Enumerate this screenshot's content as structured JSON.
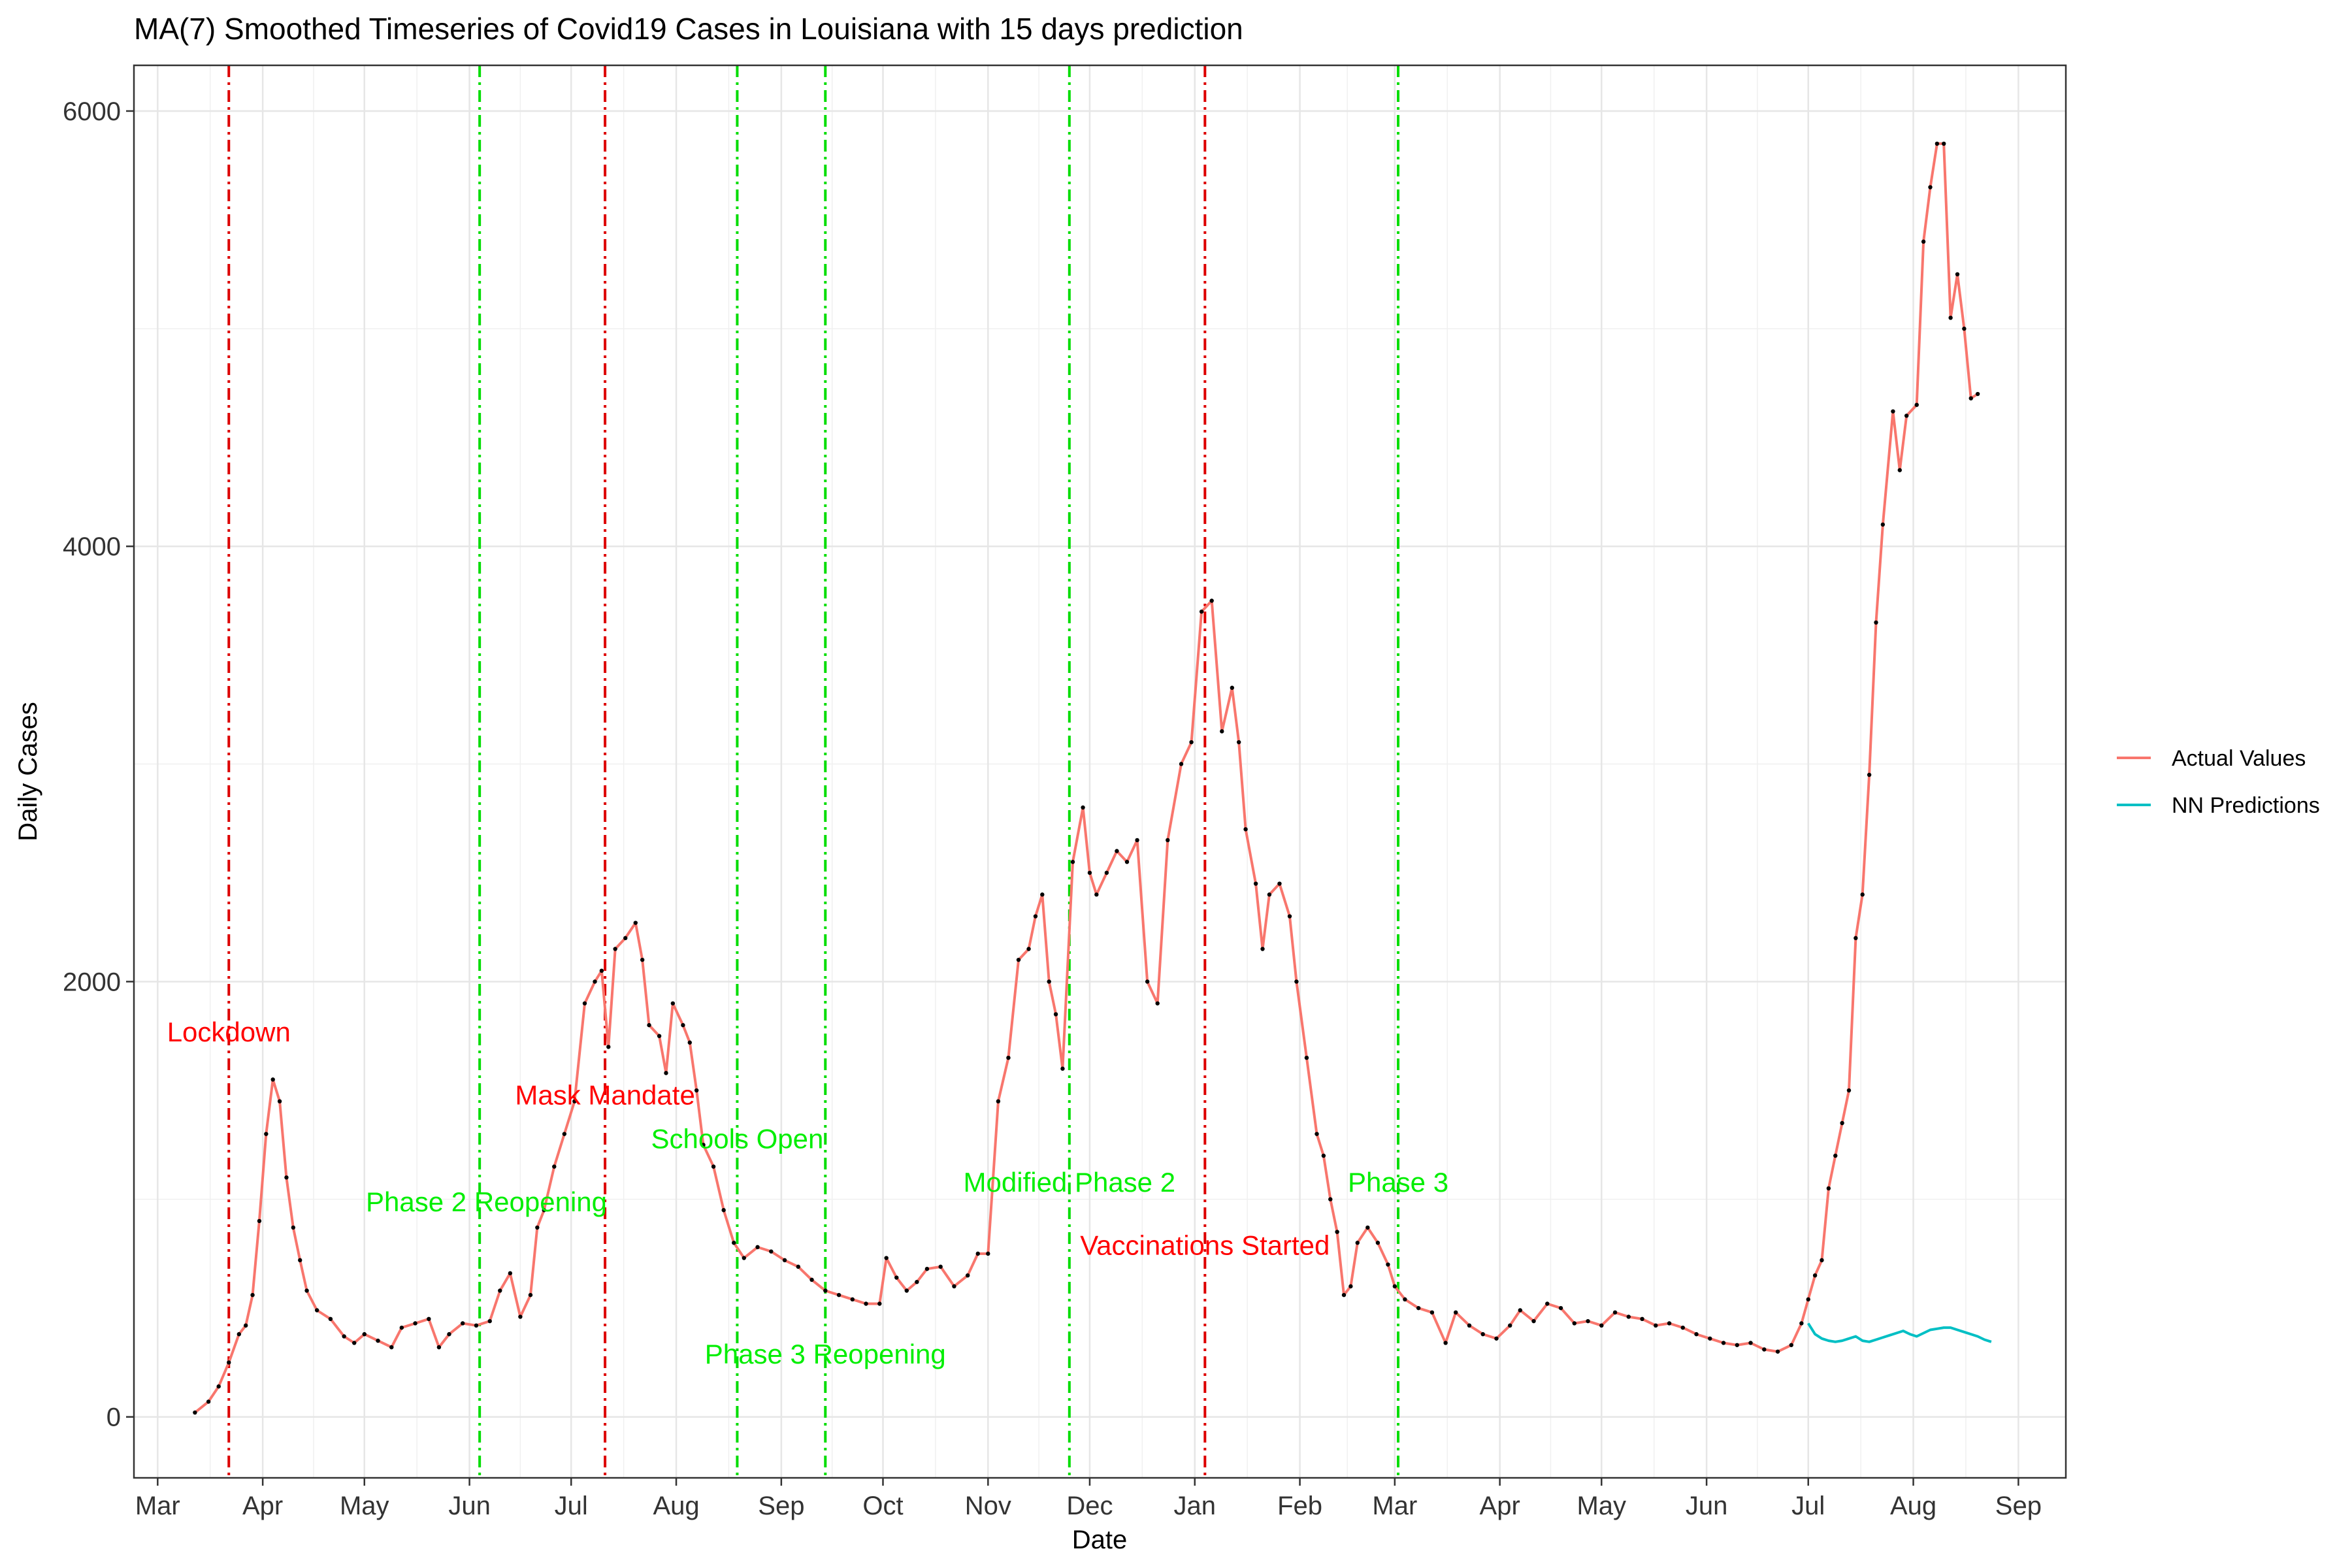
{
  "chart_data": {
    "type": "line",
    "title": "MA(7) Smoothed Timeseries of Covid19 Cases in Louisiana with 15 days prediction",
    "xlabel": "Date",
    "ylabel": "Daily Cases",
    "xlim": [
      "2020-02-23",
      "2021-09-15"
    ],
    "ylim": [
      -280,
      6210
    ],
    "y_ticks": [
      0,
      2000,
      4000,
      6000
    ],
    "x_ticks": [
      {
        "date": "2020-03-01",
        "label": "Mar"
      },
      {
        "date": "2020-04-01",
        "label": "Apr"
      },
      {
        "date": "2020-05-01",
        "label": "May"
      },
      {
        "date": "2020-06-01",
        "label": "Jun"
      },
      {
        "date": "2020-07-01",
        "label": "Jul"
      },
      {
        "date": "2020-08-01",
        "label": "Aug"
      },
      {
        "date": "2020-09-01",
        "label": "Sep"
      },
      {
        "date": "2020-10-01",
        "label": "Oct"
      },
      {
        "date": "2020-11-01",
        "label": "Nov"
      },
      {
        "date": "2020-12-01",
        "label": "Dec"
      },
      {
        "date": "2021-01-01",
        "label": "Jan"
      },
      {
        "date": "2021-02-01",
        "label": "Feb"
      },
      {
        "date": "2021-03-01",
        "label": "Mar"
      },
      {
        "date": "2021-04-01",
        "label": "Apr"
      },
      {
        "date": "2021-05-01",
        "label": "May"
      },
      {
        "date": "2021-06-01",
        "label": "Jun"
      },
      {
        "date": "2021-07-01",
        "label": "Jul"
      },
      {
        "date": "2021-08-01",
        "label": "Aug"
      },
      {
        "date": "2021-09-01",
        "label": "Sep"
      }
    ],
    "grid": true,
    "legend_position": "right",
    "series": [
      {
        "name": "Actual Values",
        "color": "#F8766D",
        "markers": true,
        "points": [
          [
            "2020-03-12",
            20
          ],
          [
            "2020-03-16",
            70
          ],
          [
            "2020-03-19",
            140
          ],
          [
            "2020-03-22",
            250
          ],
          [
            "2020-03-25",
            380
          ],
          [
            "2020-03-27",
            420
          ],
          [
            "2020-03-29",
            560
          ],
          [
            "2020-03-31",
            900
          ],
          [
            "2020-04-02",
            1300
          ],
          [
            "2020-04-04",
            1550
          ],
          [
            "2020-04-06",
            1450
          ],
          [
            "2020-04-08",
            1100
          ],
          [
            "2020-04-10",
            870
          ],
          [
            "2020-04-12",
            720
          ],
          [
            "2020-04-14",
            580
          ],
          [
            "2020-04-17",
            490
          ],
          [
            "2020-04-21",
            450
          ],
          [
            "2020-04-25",
            370
          ],
          [
            "2020-04-28",
            340
          ],
          [
            "2020-05-01",
            380
          ],
          [
            "2020-05-05",
            350
          ],
          [
            "2020-05-09",
            320
          ],
          [
            "2020-05-12",
            410
          ],
          [
            "2020-05-16",
            430
          ],
          [
            "2020-05-20",
            450
          ],
          [
            "2020-05-23",
            320
          ],
          [
            "2020-05-26",
            380
          ],
          [
            "2020-05-30",
            430
          ],
          [
            "2020-06-03",
            420
          ],
          [
            "2020-06-07",
            440
          ],
          [
            "2020-06-10",
            580
          ],
          [
            "2020-06-13",
            660
          ],
          [
            "2020-06-16",
            460
          ],
          [
            "2020-06-19",
            560
          ],
          [
            "2020-06-21",
            870
          ],
          [
            "2020-06-23",
            950
          ],
          [
            "2020-06-26",
            1150
          ],
          [
            "2020-06-29",
            1300
          ],
          [
            "2020-07-02",
            1450
          ],
          [
            "2020-07-05",
            1900
          ],
          [
            "2020-07-08",
            2000
          ],
          [
            "2020-07-10",
            2050
          ],
          [
            "2020-07-12",
            1700
          ],
          [
            "2020-07-14",
            2150
          ],
          [
            "2020-07-17",
            2200
          ],
          [
            "2020-07-20",
            2270
          ],
          [
            "2020-07-22",
            2100
          ],
          [
            "2020-07-24",
            1800
          ],
          [
            "2020-07-27",
            1750
          ],
          [
            "2020-07-29",
            1580
          ],
          [
            "2020-07-31",
            1900
          ],
          [
            "2020-08-03",
            1800
          ],
          [
            "2020-08-05",
            1720
          ],
          [
            "2020-08-07",
            1500
          ],
          [
            "2020-08-09",
            1250
          ],
          [
            "2020-08-12",
            1150
          ],
          [
            "2020-08-15",
            950
          ],
          [
            "2020-08-18",
            800
          ],
          [
            "2020-08-21",
            730
          ],
          [
            "2020-08-25",
            780
          ],
          [
            "2020-08-29",
            760
          ],
          [
            "2020-09-02",
            720
          ],
          [
            "2020-09-06",
            690
          ],
          [
            "2020-09-10",
            630
          ],
          [
            "2020-09-14",
            580
          ],
          [
            "2020-09-18",
            560
          ],
          [
            "2020-09-22",
            540
          ],
          [
            "2020-09-26",
            520
          ],
          [
            "2020-09-30",
            520
          ],
          [
            "2020-10-02",
            730
          ],
          [
            "2020-10-05",
            640
          ],
          [
            "2020-10-08",
            580
          ],
          [
            "2020-10-11",
            620
          ],
          [
            "2020-10-14",
            680
          ],
          [
            "2020-10-18",
            690
          ],
          [
            "2020-10-22",
            600
          ],
          [
            "2020-10-26",
            650
          ],
          [
            "2020-10-29",
            750
          ],
          [
            "2020-11-01",
            750
          ],
          [
            "2020-11-04",
            1450
          ],
          [
            "2020-11-07",
            1650
          ],
          [
            "2020-11-10",
            2100
          ],
          [
            "2020-11-13",
            2150
          ],
          [
            "2020-11-15",
            2300
          ],
          [
            "2020-11-17",
            2400
          ],
          [
            "2020-11-19",
            2000
          ],
          [
            "2020-11-21",
            1850
          ],
          [
            "2020-11-23",
            1600
          ],
          [
            "2020-11-26",
            2550
          ],
          [
            "2020-11-29",
            2800
          ],
          [
            "2020-12-01",
            2500
          ],
          [
            "2020-12-03",
            2400
          ],
          [
            "2020-12-06",
            2500
          ],
          [
            "2020-12-09",
            2600
          ],
          [
            "2020-12-12",
            2550
          ],
          [
            "2020-12-15",
            2650
          ],
          [
            "2020-12-18",
            2000
          ],
          [
            "2020-12-21",
            1900
          ],
          [
            "2020-12-24",
            2650
          ],
          [
            "2020-12-28",
            3000
          ],
          [
            "2020-12-31",
            3100
          ],
          [
            "2021-01-03",
            3700
          ],
          [
            "2021-01-06",
            3750
          ],
          [
            "2021-01-09",
            3150
          ],
          [
            "2021-01-12",
            3350
          ],
          [
            "2021-01-14",
            3100
          ],
          [
            "2021-01-16",
            2700
          ],
          [
            "2021-01-19",
            2450
          ],
          [
            "2021-01-21",
            2150
          ],
          [
            "2021-01-23",
            2400
          ],
          [
            "2021-01-26",
            2450
          ],
          [
            "2021-01-29",
            2300
          ],
          [
            "2021-01-31",
            2000
          ],
          [
            "2021-02-03",
            1650
          ],
          [
            "2021-02-06",
            1300
          ],
          [
            "2021-02-08",
            1200
          ],
          [
            "2021-02-10",
            1000
          ],
          [
            "2021-02-12",
            850
          ],
          [
            "2021-02-14",
            560
          ],
          [
            "2021-02-16",
            600
          ],
          [
            "2021-02-18",
            800
          ],
          [
            "2021-02-21",
            870
          ],
          [
            "2021-02-24",
            800
          ],
          [
            "2021-02-27",
            700
          ],
          [
            "2021-03-01",
            600
          ],
          [
            "2021-03-04",
            540
          ],
          [
            "2021-03-08",
            500
          ],
          [
            "2021-03-12",
            480
          ],
          [
            "2021-03-16",
            340
          ],
          [
            "2021-03-19",
            480
          ],
          [
            "2021-03-23",
            420
          ],
          [
            "2021-03-27",
            380
          ],
          [
            "2021-03-31",
            360
          ],
          [
            "2021-04-04",
            420
          ],
          [
            "2021-04-07",
            490
          ],
          [
            "2021-04-11",
            440
          ],
          [
            "2021-04-15",
            520
          ],
          [
            "2021-04-19",
            500
          ],
          [
            "2021-04-23",
            430
          ],
          [
            "2021-04-27",
            440
          ],
          [
            "2021-05-01",
            420
          ],
          [
            "2021-05-05",
            480
          ],
          [
            "2021-05-09",
            460
          ],
          [
            "2021-05-13",
            450
          ],
          [
            "2021-05-17",
            420
          ],
          [
            "2021-05-21",
            430
          ],
          [
            "2021-05-25",
            410
          ],
          [
            "2021-05-29",
            380
          ],
          [
            "2021-06-02",
            360
          ],
          [
            "2021-06-06",
            340
          ],
          [
            "2021-06-10",
            330
          ],
          [
            "2021-06-14",
            340
          ],
          [
            "2021-06-18",
            310
          ],
          [
            "2021-06-22",
            300
          ],
          [
            "2021-06-26",
            330
          ],
          [
            "2021-06-29",
            430
          ],
          [
            "2021-07-01",
            540
          ],
          [
            "2021-07-03",
            650
          ],
          [
            "2021-07-05",
            720
          ],
          [
            "2021-07-07",
            1050
          ],
          [
            "2021-07-09",
            1200
          ],
          [
            "2021-07-11",
            1350
          ],
          [
            "2021-07-13",
            1500
          ],
          [
            "2021-07-15",
            2200
          ],
          [
            "2021-07-17",
            2400
          ],
          [
            "2021-07-19",
            2950
          ],
          [
            "2021-07-21",
            3650
          ],
          [
            "2021-07-23",
            4100
          ],
          [
            "2021-07-26",
            4620
          ],
          [
            "2021-07-28",
            4350
          ],
          [
            "2021-07-30",
            4600
          ],
          [
            "2021-08-02",
            4650
          ],
          [
            "2021-08-04",
            5400
          ],
          [
            "2021-08-06",
            5650
          ],
          [
            "2021-08-08",
            5850
          ],
          [
            "2021-08-10",
            5850
          ],
          [
            "2021-08-12",
            5050
          ],
          [
            "2021-08-14",
            5250
          ],
          [
            "2021-08-16",
            5000
          ],
          [
            "2021-08-18",
            4680
          ],
          [
            "2021-08-20",
            4700
          ]
        ]
      },
      {
        "name": "NN Predictions",
        "color": "#00BFC4",
        "markers": false,
        "points": [
          [
            "2021-07-01",
            430
          ],
          [
            "2021-07-03",
            380
          ],
          [
            "2021-07-05",
            360
          ],
          [
            "2021-07-07",
            350
          ],
          [
            "2021-07-09",
            345
          ],
          [
            "2021-07-11",
            350
          ],
          [
            "2021-07-13",
            360
          ],
          [
            "2021-07-15",
            370
          ],
          [
            "2021-07-17",
            350
          ],
          [
            "2021-07-19",
            345
          ],
          [
            "2021-07-21",
            355
          ],
          [
            "2021-07-23",
            365
          ],
          [
            "2021-07-25",
            375
          ],
          [
            "2021-07-27",
            385
          ],
          [
            "2021-07-29",
            395
          ],
          [
            "2021-07-31",
            380
          ],
          [
            "2021-08-02",
            370
          ],
          [
            "2021-08-04",
            385
          ],
          [
            "2021-08-06",
            400
          ],
          [
            "2021-08-08",
            405
          ],
          [
            "2021-08-10",
            410
          ],
          [
            "2021-08-12",
            410
          ],
          [
            "2021-08-14",
            400
          ],
          [
            "2021-08-16",
            390
          ],
          [
            "2021-08-18",
            380
          ],
          [
            "2021-08-20",
            370
          ],
          [
            "2021-08-22",
            355
          ],
          [
            "2021-08-24",
            345
          ]
        ]
      }
    ],
    "vlines": [
      {
        "date": "2020-03-22",
        "color": "#DD0000"
      },
      {
        "date": "2020-06-04",
        "color": "#00DD00"
      },
      {
        "date": "2020-07-11",
        "color": "#DD0000"
      },
      {
        "date": "2020-08-19",
        "color": "#00DD00"
      },
      {
        "date": "2020-09-14",
        "color": "#00DD00"
      },
      {
        "date": "2020-11-25",
        "color": "#00DD00"
      },
      {
        "date": "2021-01-04",
        "color": "#DD0000"
      },
      {
        "date": "2021-03-02",
        "color": "#00DD00"
      }
    ],
    "annotations": [
      {
        "text": "Lockdown",
        "date": "2020-03-22",
        "y": 1770,
        "color": "#FF0000"
      },
      {
        "text": "Phase 2 Reopening",
        "date": "2020-06-06",
        "y": 990,
        "color": "#00EE00"
      },
      {
        "text": "Mask Mandate",
        "date": "2020-07-11",
        "y": 1480,
        "color": "#FF0000"
      },
      {
        "text": "Schools Open",
        "date": "2020-08-19",
        "y": 1280,
        "color": "#00EE00"
      },
      {
        "text": "Phase 3 Reopening",
        "date": "2020-09-14",
        "y": 290,
        "color": "#00EE00"
      },
      {
        "text": "Modified Phase 2",
        "date": "2020-11-25",
        "y": 1080,
        "color": "#00EE00"
      },
      {
        "text": "Vaccinations Started",
        "date": "2021-01-04",
        "y": 790,
        "color": "#FF0000"
      },
      {
        "text": "Phase 3",
        "date": "2021-03-02",
        "y": 1080,
        "color": "#00EE00"
      }
    ]
  }
}
